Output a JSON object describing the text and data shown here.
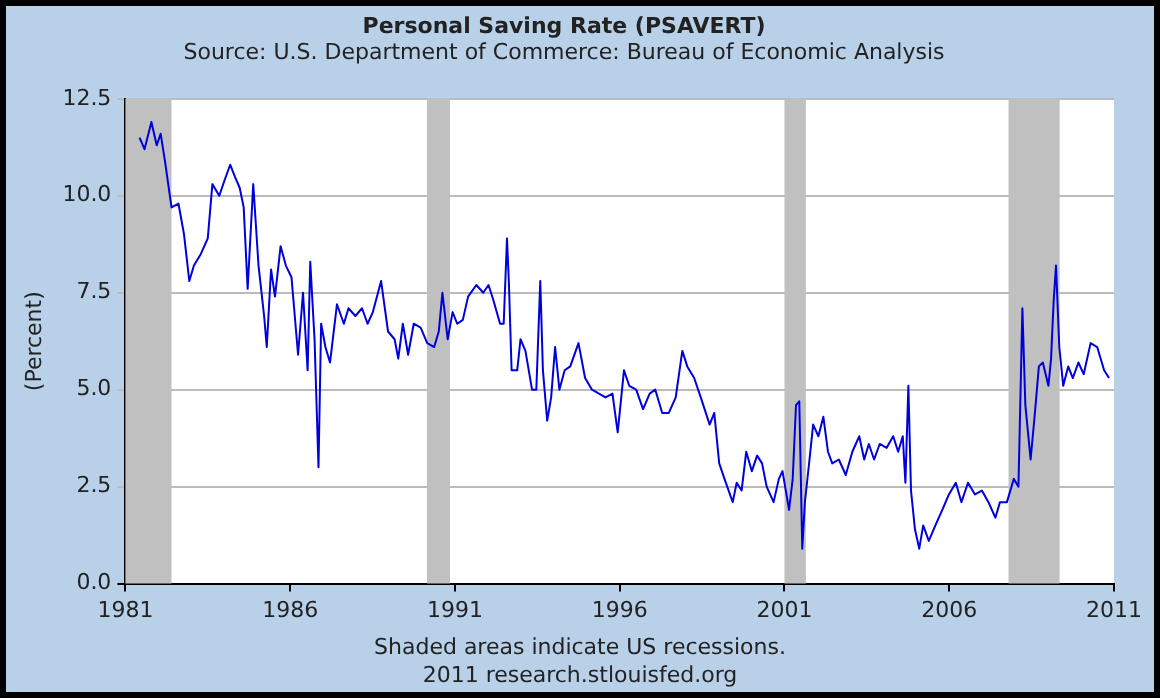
{
  "chart_data": {
    "type": "line",
    "title": "Personal Saving Rate (PSAVERT)",
    "subtitle": "Source: U.S. Department of Commerce: Bureau of Economic Analysis",
    "ylabel": "(Percent)",
    "annotations": [
      "Shaded areas indicate US recessions.",
      "2011 research.stlouisfed.org"
    ],
    "xlim": [
      1981,
      2011
    ],
    "xticks": [
      1981,
      1986,
      1991,
      1996,
      2001,
      2006,
      2011
    ],
    "ylim": [
      0,
      12.5
    ],
    "yticks": [
      {
        "value": 0,
        "label": "0.0"
      },
      {
        "value": 2.5,
        "label": "2.5"
      },
      {
        "value": 5,
        "label": "5.0"
      },
      {
        "value": 7.5,
        "label": "7.5"
      },
      {
        "value": 10,
        "label": "10.0"
      },
      {
        "value": 12.5,
        "label": "12.5"
      }
    ],
    "grid": "y",
    "legend": false,
    "marker": "none",
    "line_style": "solid",
    "bands": [
      {
        "axis": "x",
        "from": 1981.0,
        "to": 1982.4,
        "color": "#c0c0c0"
      },
      {
        "axis": "x",
        "from": 1990.15,
        "to": 1990.85,
        "color": "#c0c0c0"
      },
      {
        "axis": "x",
        "from": 2001.0,
        "to": 2001.65,
        "color": "#c0c0c0"
      },
      {
        "axis": "x",
        "from": 2007.8,
        "to": 2009.35,
        "color": "#c0c0c0"
      }
    ],
    "series": [
      {
        "color": "#0000dd",
        "x": [
          1981.43,
          1981.58,
          1981.79,
          1981.95,
          1982.07,
          1982.2,
          1982.4,
          1982.61,
          1982.78,
          1982.94,
          1983.08,
          1983.29,
          1983.5,
          1983.64,
          1983.85,
          1984.01,
          1984.18,
          1984.32,
          1984.47,
          1984.59,
          1984.71,
          1984.88,
          1985.04,
          1985.21,
          1985.29,
          1985.42,
          1985.54,
          1985.71,
          1985.87,
          1986.04,
          1986.24,
          1986.39,
          1986.53,
          1986.61,
          1986.74,
          1986.86,
          1986.94,
          1987.07,
          1987.21,
          1987.42,
          1987.63,
          1987.77,
          1987.98,
          1988.18,
          1988.35,
          1988.51,
          1988.76,
          1988.97,
          1989.17,
          1989.28,
          1989.42,
          1989.58,
          1989.75,
          1989.96,
          1990.16,
          1990.37,
          1990.51,
          1990.62,
          1990.78,
          1990.93,
          1991.07,
          1991.24,
          1991.4,
          1991.65,
          1991.86,
          1992.02,
          1992.17,
          1992.37,
          1992.48,
          1992.58,
          1992.64,
          1992.72,
          1992.89,
          1992.99,
          1993.14,
          1993.34,
          1993.47,
          1993.59,
          1993.67,
          1993.8,
          1993.92,
          1994.04,
          1994.17,
          1994.33,
          1994.5,
          1994.75,
          1994.95,
          1995.16,
          1995.37,
          1995.57,
          1995.78,
          1995.94,
          1996.13,
          1996.29,
          1996.5,
          1996.71,
          1996.91,
          1997.08,
          1997.29,
          1997.49,
          1997.7,
          1997.9,
          1998.05,
          1998.26,
          1998.46,
          1998.73,
          1998.87,
          1999.02,
          1999.18,
          1999.43,
          1999.55,
          1999.7,
          1999.84,
          2000.01,
          2000.17,
          2000.32,
          2000.46,
          2000.67,
          2000.83,
          2000.94,
          2001.04,
          2001.14,
          2001.25,
          2001.35,
          2001.45,
          2001.54,
          2001.62,
          2001.76,
          2001.87,
          2002.03,
          2002.18,
          2002.32,
          2002.45,
          2002.65,
          2002.86,
          2003.06,
          2003.27,
          2003.42,
          2003.56,
          2003.72,
          2003.89,
          2004.1,
          2004.3,
          2004.45,
          2004.59,
          2004.67,
          2004.76,
          2004.84,
          2004.96,
          2005.09,
          2005.21,
          2005.38,
          2005.58,
          2005.79,
          2005.99,
          2006.2,
          2006.37,
          2006.57,
          2006.78,
          2006.99,
          2007.19,
          2007.4,
          2007.54,
          2007.75,
          2007.96,
          2008.1,
          2008.22,
          2008.31,
          2008.47,
          2008.6,
          2008.72,
          2008.84,
          2009.01,
          2009.09,
          2009.17,
          2009.24,
          2009.34,
          2009.46,
          2009.61,
          2009.75,
          2009.92,
          2010.08,
          2010.29,
          2010.49,
          2010.7,
          2010.85
        ],
        "values": [
          11.5,
          11.2,
          11.9,
          11.3,
          11.6,
          10.9,
          9.7,
          9.8,
          9.0,
          7.8,
          8.2,
          8.5,
          8.9,
          10.3,
          10.0,
          10.4,
          10.8,
          10.5,
          10.2,
          9.7,
          7.6,
          10.3,
          8.2,
          6.9,
          6.1,
          8.1,
          7.4,
          8.7,
          8.2,
          7.9,
          5.9,
          7.5,
          5.5,
          8.3,
          6.3,
          3.0,
          6.7,
          6.1,
          5.7,
          7.2,
          6.7,
          7.1,
          6.9,
          7.1,
          6.7,
          7.0,
          7.8,
          6.5,
          6.3,
          5.8,
          6.7,
          5.9,
          6.7,
          6.6,
          6.2,
          6.1,
          6.5,
          7.5,
          6.3,
          7.0,
          6.7,
          6.8,
          7.4,
          7.7,
          7.5,
          7.7,
          7.3,
          6.7,
          6.7,
          8.9,
          7.7,
          5.5,
          5.5,
          6.3,
          6.0,
          5.0,
          5.0,
          7.8,
          5.5,
          4.2,
          4.8,
          6.1,
          5.0,
          5.5,
          5.6,
          6.2,
          5.3,
          5.0,
          4.9,
          4.8,
          4.9,
          3.9,
          5.5,
          5.1,
          5.0,
          4.5,
          4.9,
          5.0,
          4.4,
          4.4,
          4.8,
          6.0,
          5.6,
          5.3,
          4.8,
          4.1,
          4.4,
          3.1,
          2.7,
          2.1,
          2.6,
          2.4,
          3.4,
          2.9,
          3.3,
          3.1,
          2.5,
          2.1,
          2.7,
          2.9,
          2.4,
          1.9,
          2.7,
          4.6,
          4.7,
          0.9,
          2.1,
          3.2,
          4.1,
          3.8,
          4.3,
          3.4,
          3.1,
          3.2,
          2.8,
          3.4,
          3.8,
          3.2,
          3.6,
          3.2,
          3.6,
          3.5,
          3.8,
          3.4,
          3.8,
          2.6,
          5.1,
          2.4,
          1.4,
          0.9,
          1.5,
          1.1,
          1.5,
          1.9,
          2.3,
          2.6,
          2.1,
          2.6,
          2.3,
          2.4,
          2.1,
          1.7,
          2.1,
          2.1,
          2.7,
          2.5,
          7.1,
          4.6,
          3.2,
          4.4,
          5.6,
          5.7,
          5.1,
          5.8,
          7.3,
          8.2,
          6.1,
          5.1,
          5.6,
          5.3,
          5.7,
          5.4,
          6.2,
          6.1,
          5.5,
          5.3
        ]
      }
    ]
  }
}
